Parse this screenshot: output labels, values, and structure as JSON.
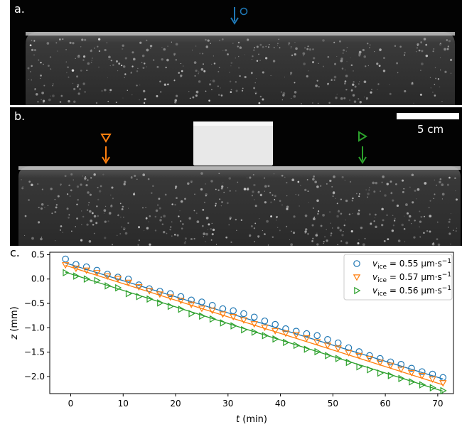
{
  "panels": {
    "a_label": "a.",
    "b_label": "b.",
    "c_label": "c.",
    "scalebar_label": "5 cm"
  },
  "colors": {
    "series_blue": "#1f77b4",
    "series_orange": "#ff7f0e",
    "series_green": "#2ca02c"
  },
  "chart_data": {
    "type": "scatter",
    "xlabel": "t (min)",
    "ylabel": "z (mm)",
    "xlim": [
      -4,
      73
    ],
    "ylim": [
      -2.35,
      0.55
    ],
    "xticks": [
      0,
      10,
      20,
      30,
      40,
      50,
      60,
      70
    ],
    "yticks": [
      0.5,
      0.0,
      -0.5,
      -1.0,
      -1.5,
      -2.0
    ],
    "ytick_labels": [
      "0.5",
      "0.0",
      "−0.5",
      "−1.0",
      "−1.5",
      "−2.0"
    ],
    "legend_position": "top-right",
    "series": [
      {
        "name": "v_ice = 0.55 µm·s⁻¹",
        "legend": {
          "v": "v",
          "sub": "ice",
          "eq": " = 0.55 µm·s",
          "sup": "−1"
        },
        "marker": "circle",
        "color": "#1f77b4",
        "x": [
          -1,
          1,
          3,
          5,
          7,
          9,
          11,
          13,
          15,
          17,
          19,
          21,
          23,
          25,
          27,
          29,
          31,
          33,
          35,
          37,
          39,
          41,
          43,
          45,
          47,
          49,
          51,
          53,
          55,
          57,
          59,
          61,
          63,
          65,
          67,
          69,
          71
        ],
        "y": [
          0.41,
          0.3,
          0.25,
          0.18,
          0.1,
          0.04,
          0.0,
          -0.12,
          -0.2,
          -0.25,
          -0.3,
          -0.36,
          -0.43,
          -0.47,
          -0.54,
          -0.61,
          -0.65,
          -0.71,
          -0.78,
          -0.86,
          -0.93,
          -1.02,
          -1.07,
          -1.12,
          -1.16,
          -1.24,
          -1.31,
          -1.41,
          -1.49,
          -1.57,
          -1.63,
          -1.7,
          -1.75,
          -1.83,
          -1.9,
          -1.95,
          -2.02
        ],
        "fit": {
          "x": [
            -1,
            71
          ],
          "y": [
            0.33,
            -2.05
          ]
        }
      },
      {
        "name": "v_ice = 0.57 µm·s⁻¹",
        "legend": {
          "v": "v",
          "sub": "ice",
          "eq": " = 0.57 µm·s",
          "sup": "−1"
        },
        "marker": "triangle-down",
        "color": "#ff7f0e",
        "x": [
          -1,
          1,
          3,
          5,
          7,
          9,
          11,
          13,
          15,
          17,
          19,
          21,
          23,
          25,
          27,
          29,
          31,
          33,
          35,
          37,
          39,
          41,
          43,
          45,
          47,
          49,
          51,
          53,
          55,
          57,
          59,
          61,
          63,
          65,
          67,
          69,
          71
        ],
        "y": [
          0.29,
          0.22,
          0.18,
          0.13,
          0.06,
          0.01,
          -0.07,
          -0.16,
          -0.24,
          -0.31,
          -0.37,
          -0.44,
          -0.52,
          -0.6,
          -0.64,
          -0.72,
          -0.77,
          -0.84,
          -0.92,
          -0.99,
          -1.06,
          -1.11,
          -1.14,
          -1.21,
          -1.29,
          -1.36,
          -1.42,
          -1.51,
          -1.57,
          -1.63,
          -1.71,
          -1.77,
          -1.85,
          -1.92,
          -1.98,
          -2.05,
          -2.13
        ],
        "fit": {
          "x": [
            -1,
            71
          ],
          "y": [
            0.28,
            -2.17
          ]
        }
      },
      {
        "name": "v_ice = 0.56 µm·s⁻¹",
        "legend": {
          "v": "v",
          "sub": "ice",
          "eq": " = 0.56 µm·s",
          "sup": "−1"
        },
        "marker": "triangle-right",
        "color": "#2ca02c",
        "x": [
          -1,
          1,
          3,
          5,
          7,
          9,
          11,
          13,
          15,
          17,
          19,
          21,
          23,
          25,
          27,
          29,
          31,
          33,
          35,
          37,
          39,
          41,
          43,
          45,
          47,
          49,
          51,
          53,
          55,
          57,
          59,
          61,
          63,
          65,
          67,
          69,
          71
        ],
        "y": [
          0.13,
          0.06,
          0.0,
          -0.03,
          -0.14,
          -0.18,
          -0.3,
          -0.36,
          -0.41,
          -0.49,
          -0.56,
          -0.62,
          -0.71,
          -0.76,
          -0.82,
          -0.9,
          -0.96,
          -1.04,
          -1.09,
          -1.16,
          -1.23,
          -1.3,
          -1.36,
          -1.44,
          -1.49,
          -1.57,
          -1.63,
          -1.71,
          -1.8,
          -1.86,
          -1.93,
          -1.98,
          -2.04,
          -2.11,
          -2.17,
          -2.23,
          -2.29
        ],
        "fit": {
          "x": [
            -1,
            71
          ],
          "y": [
            0.14,
            -2.3
          ]
        }
      }
    ]
  }
}
